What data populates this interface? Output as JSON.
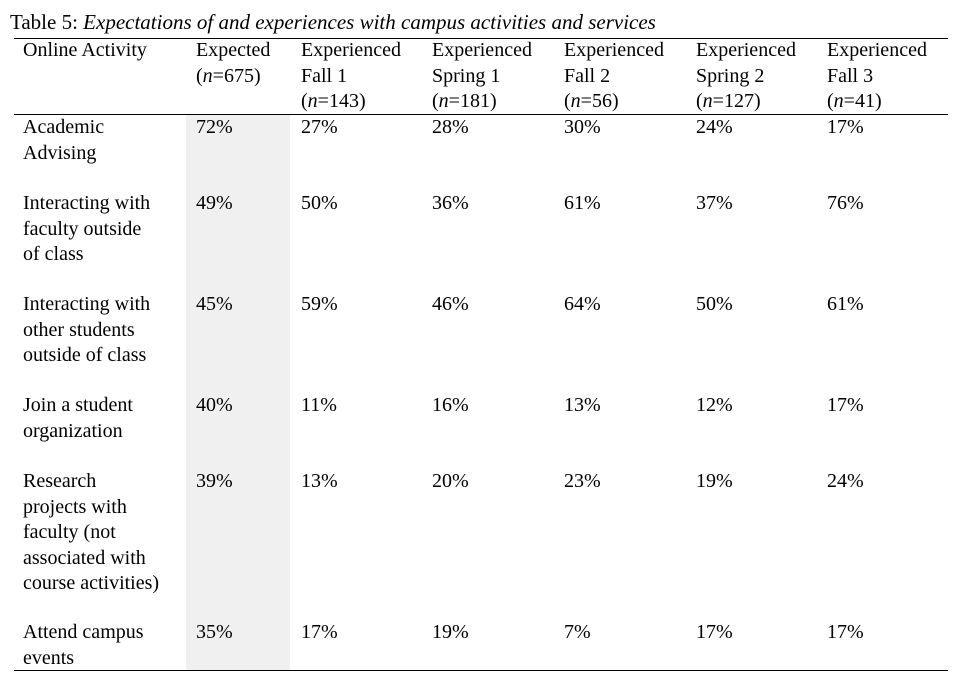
{
  "caption": {
    "label": "Table 5:",
    "title": "Expectations of and experiences with campus activities and services"
  },
  "table": {
    "row_header": "Online Activity",
    "columns": [
      {
        "line1": "Expected",
        "line2": "",
        "n_var": "n",
        "n_val": "=675"
      },
      {
        "line1": "Experienced",
        "line2": "Fall 1",
        "n_var": "n",
        "n_val": "=143"
      },
      {
        "line1": "Experienced",
        "line2": "Spring 1",
        "n_var": "n",
        "n_val": "=181"
      },
      {
        "line1": "Experienced",
        "line2": "Fall 2",
        "n_var": "n",
        "n_val": "=56"
      },
      {
        "line1": "Experienced",
        "line2": "Spring 2",
        "n_var": "n",
        "n_val": "=127"
      },
      {
        "line1": "Experienced",
        "line2": "Fall 3",
        "n_var": "n",
        "n_val": "=41"
      }
    ],
    "rows": [
      {
        "label": [
          "Academic",
          "Advising"
        ],
        "values": [
          "72%",
          "27%",
          "28%",
          "30%",
          "24%",
          "17%"
        ]
      },
      {
        "label": [
          "Interacting with",
          "faculty outside",
          "of class"
        ],
        "values": [
          "49%",
          "50%",
          "36%",
          "61%",
          "37%",
          "76%"
        ]
      },
      {
        "label": [
          "Interacting with",
          "other students",
          "outside of class"
        ],
        "values": [
          "45%",
          "59%",
          "46%",
          "64%",
          "50%",
          "61%"
        ]
      },
      {
        "label": [
          "Join a student",
          "organization"
        ],
        "values": [
          "40%",
          "11%",
          "16%",
          "13%",
          "12%",
          "17%"
        ]
      },
      {
        "label": [
          "Research",
          "projects with",
          "faculty (not",
          "associated with",
          "course activities)"
        ],
        "values": [
          "39%",
          "13%",
          "20%",
          "23%",
          "19%",
          "24%"
        ]
      },
      {
        "label": [
          "Attend campus",
          "events"
        ],
        "values": [
          "35%",
          "17%",
          "19%",
          "7%",
          "17%",
          "17%"
        ]
      }
    ]
  }
}
